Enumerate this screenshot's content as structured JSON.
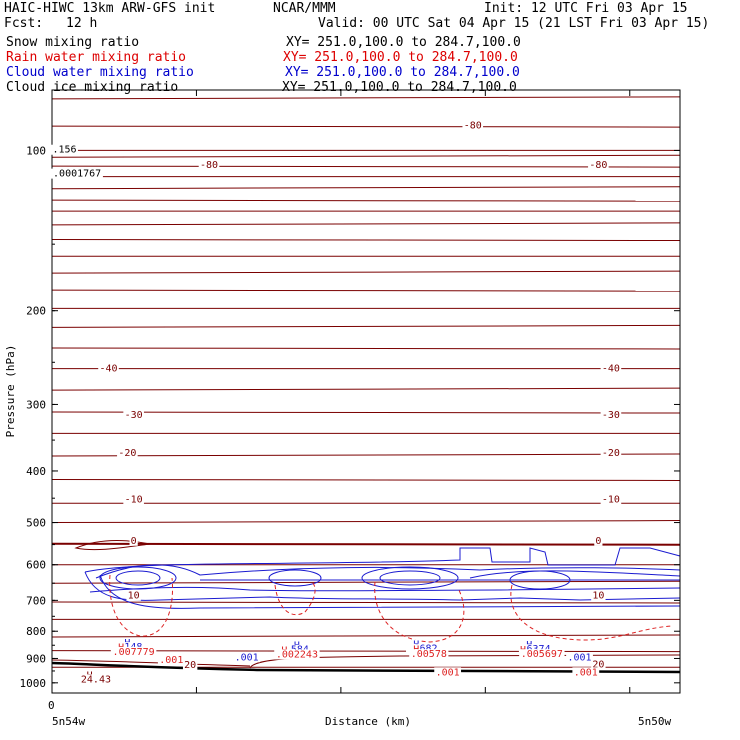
{
  "header": {
    "model": "HAIC-HIWC 13km ARW-GFS init",
    "org": "NCAR/MMM",
    "init": "Init: 12 UTC Fri 03 Apr 15",
    "fcst_label": "Fcst:",
    "fcst_value": "12 h",
    "valid": "Valid: 00 UTC Sat 04 Apr 15 (21 LST Fri 03 Apr 15)"
  },
  "fields": [
    {
      "name": "Snow mixing ratio",
      "range": "XY= 251.0,100.0 to 284.7,100.0",
      "color": "#000000"
    },
    {
      "name": "Rain water mixing ratio",
      "range": "XY= 251.0,100.0 to 284.7,100.0",
      "color": "#dd0000"
    },
    {
      "name": "Cloud water mixing ratio",
      "range": "XY= 251.0,100.0 to 284.7,100.0",
      "color": "#0000cc"
    },
    {
      "name": "Cloud ice mixing ratio",
      "range": "XY= 251.0,100.0 to 284.7,100.0",
      "color": "#000000"
    }
  ],
  "colors": {
    "temperature": "#7a0000",
    "rain": "#dd2222",
    "cloud": "#1a1ad0",
    "terrain": "#000000"
  },
  "chart_data": {
    "type": "cross-section",
    "xlabel": "Distance (km)",
    "ylabel": "Pressure (hPa)",
    "x_origin_label": "0",
    "x_endpoints": [
      "5n54w",
      "5n50w"
    ],
    "y_axis": {
      "scale": "log",
      "ylim": [
        1045,
        77
      ],
      "ticks": [
        100,
        200,
        300,
        400,
        500,
        600,
        700,
        800,
        900,
        1000
      ]
    },
    "x_ticks_frac": [
      0.23,
      0.46,
      0.69,
      0.92
    ],
    "temperature_labels": [
      {
        "text": "-80",
        "x": 0.25,
        "p": 108
      },
      {
        "text": "-80",
        "x": 0.67,
        "p": 91
      },
      {
        "text": "-80",
        "x": 0.87,
        "p": 108
      },
      {
        "text": "-40",
        "x": 0.09,
        "p": 260
      },
      {
        "text": "-40",
        "x": 0.89,
        "p": 260
      },
      {
        "text": "-30",
        "x": 0.13,
        "p": 318
      },
      {
        "text": "-30",
        "x": 0.89,
        "p": 318
      },
      {
        "text": "-20",
        "x": 0.12,
        "p": 375
      },
      {
        "text": "-20",
        "x": 0.89,
        "p": 375
      },
      {
        "text": "-10",
        "x": 0.13,
        "p": 458
      },
      {
        "text": "-10",
        "x": 0.89,
        "p": 458
      },
      {
        "text": "0",
        "x": 0.13,
        "p": 548
      },
      {
        "text": "0",
        "x": 0.87,
        "p": 548
      },
      {
        "text": "10",
        "x": 0.13,
        "p": 695
      },
      {
        "text": "10",
        "x": 0.87,
        "p": 695
      },
      {
        "text": "20",
        "x": 0.22,
        "p": 938
      },
      {
        "text": "20",
        "x": 0.87,
        "p": 935
      }
    ],
    "cloud_labels": [
      {
        "text": "H",
        "x": 0.12,
        "p": 852
      },
      {
        "text": ".7148",
        "x": 0.12,
        "p": 868
      },
      {
        "text": "H",
        "x": 0.39,
        "p": 862
      },
      {
        "text": ".584",
        "x": 0.39,
        "p": 878
      },
      {
        "text": "H",
        "x": 0.58,
        "p": 858
      },
      {
        "text": ".6682",
        "x": 0.59,
        "p": 874
      },
      {
        "text": "H",
        "x": 0.76,
        "p": 860
      },
      {
        "text": ".6374",
        "x": 0.77,
        "p": 876
      },
      {
        "text": ".001",
        "x": 0.31,
        "p": 907
      },
      {
        "text": ".001",
        "x": 0.84,
        "p": 907
      }
    ],
    "rain_labels": [
      {
        "text": "H",
        "x": 0.11,
        "p": 869
      },
      {
        "text": ".007779",
        "x": 0.13,
        "p": 886
      },
      {
        "text": "H",
        "x": 0.37,
        "p": 880
      },
      {
        "text": ".002243",
        "x": 0.39,
        "p": 896
      },
      {
        "text": "H",
        "x": 0.58,
        "p": 878
      },
      {
        "text": ".00578",
        "x": 0.6,
        "p": 895
      },
      {
        "text": "H",
        "x": 0.75,
        "p": 879
      },
      {
        "text": ".005697",
        "x": 0.78,
        "p": 895
      },
      {
        "text": ".001",
        "x": 0.19,
        "p": 918
      },
      {
        "text": ".001",
        "x": 0.63,
        "p": 968
      },
      {
        "text": ".001",
        "x": 0.85,
        "p": 968
      }
    ],
    "other_labels": [
      {
        "text": "H",
        "x": 0.06,
        "p": 982,
        "color": "#7a0000"
      },
      {
        "text": "24.43",
        "x": 0.07,
        "p": 998,
        "color": "#7a0000"
      },
      {
        "text": "H",
        "x": 0.01,
        "p": 101,
        "color": "#000000"
      },
      {
        "text": ".0001767",
        "x": 0.04,
        "p": 112,
        "color": "#000000"
      },
      {
        "text": ".156",
        "x": 0.02,
        "p": 101,
        "color": "#000000"
      }
    ]
  }
}
